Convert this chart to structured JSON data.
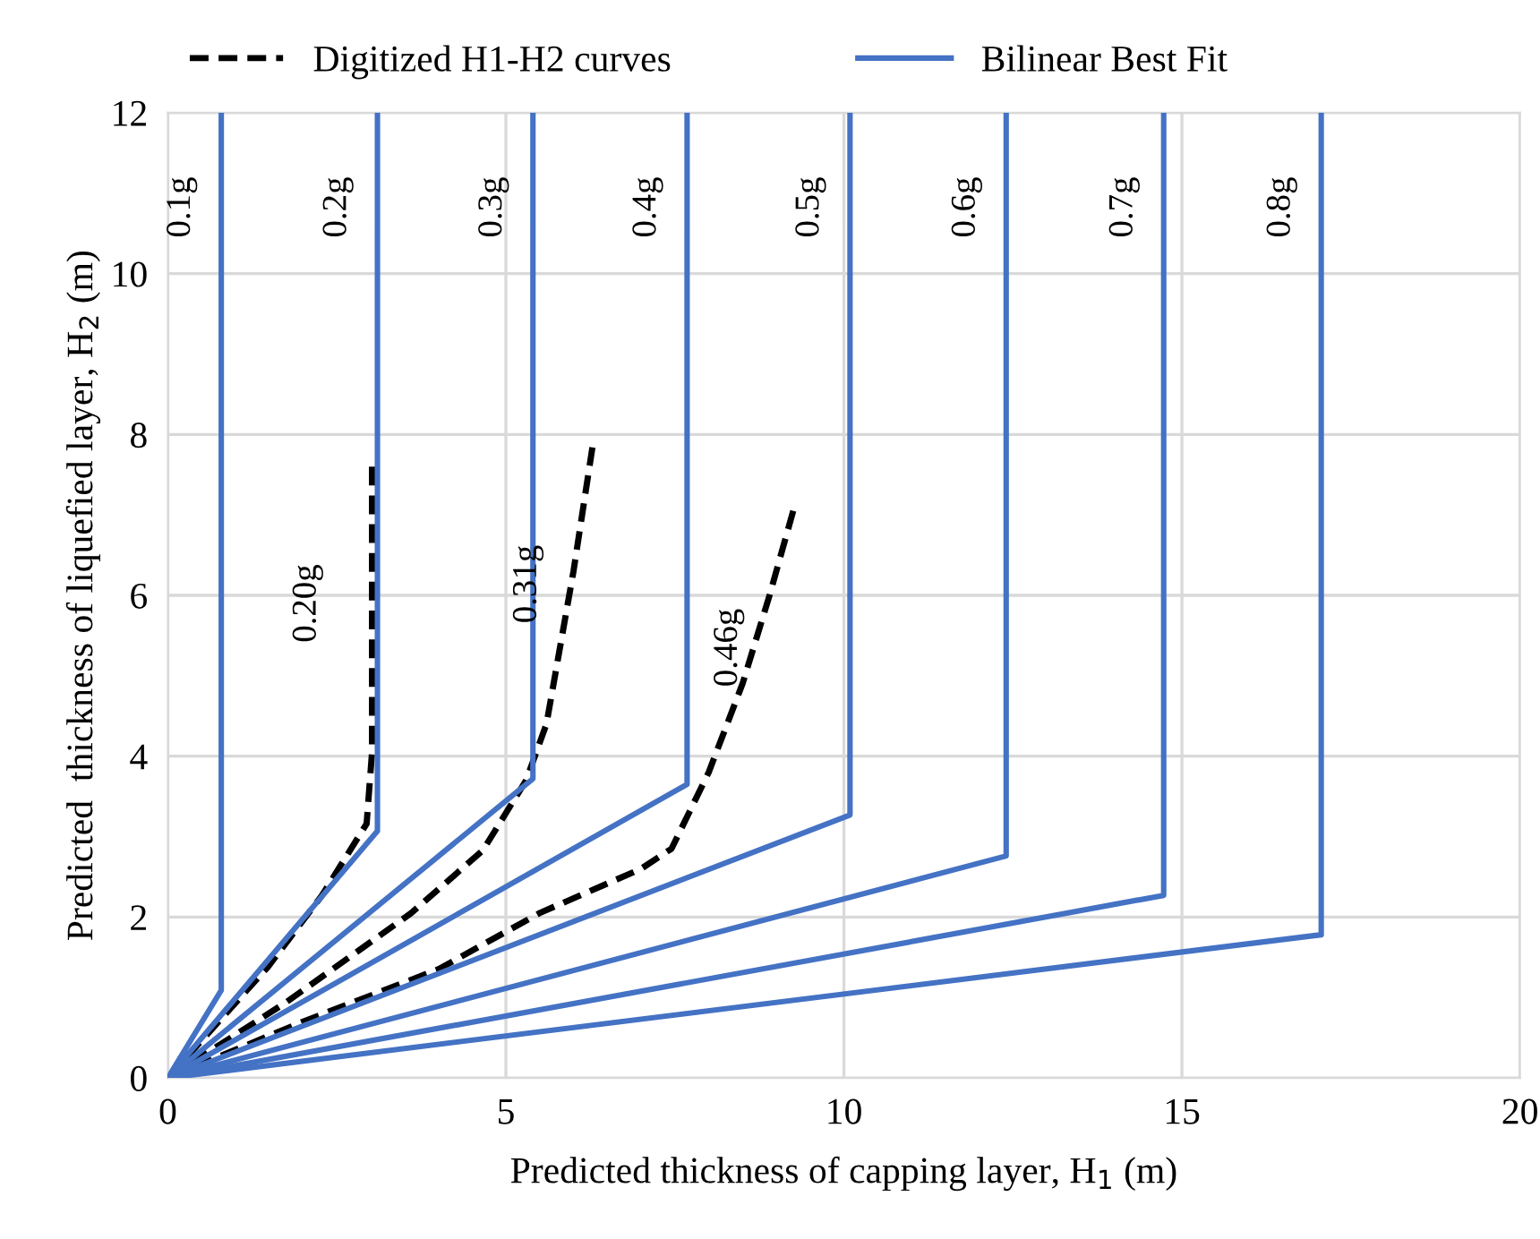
{
  "chart_data": {
    "type": "line",
    "xlabel": "Predicted thickness of capping layer, H$_{1}$ (m)",
    "ylabel": "Predicted  thickness of liquefied layer, H$_{2}$ (m)",
    "xlim": [
      0,
      20
    ],
    "ylim": [
      0,
      12
    ],
    "xticks": [
      0,
      5,
      10,
      15,
      20
    ],
    "yticks": [
      0,
      2,
      4,
      6,
      8,
      10,
      12
    ],
    "grid": true,
    "legend": "top",
    "marker": "none",
    "series": [
      {
        "name": "Digitized H1-H2 curves",
        "color": "#000000",
        "line_style": "dashed",
        "x": [
          0,
          1.48,
          2.28,
          2.94,
          3.02,
          3.02
        ],
        "values": [
          0,
          1.38,
          2.27,
          3.16,
          4.05,
          7.6
        ]
      },
      {
        "color": "#000000",
        "line_style": "dashed",
        "x": [
          0,
          1.75,
          3.6,
          4.66,
          5.3,
          5.6,
          6.0,
          6.28
        ],
        "values": [
          0,
          0.94,
          2.05,
          2.83,
          3.7,
          4.4,
          6.3,
          7.84
        ]
      },
      {
        "color": "#000000",
        "line_style": "dashed",
        "x": [
          0,
          2,
          4,
          5.5,
          7,
          7.45,
          8.0,
          8.5,
          8.9,
          9.25
        ],
        "values": [
          0,
          0.7,
          1.35,
          2.05,
          2.6,
          2.85,
          3.8,
          4.9,
          6.0,
          7.05
        ]
      },
      {
        "name": "Bilinear Best Fit",
        "color": "#4472c4",
        "line_style": "solid",
        "x": [
          0,
          0.79,
          0.79
        ],
        "values": [
          0,
          1.09,
          12
        ]
      },
      {
        "color": "#4472c4",
        "line_style": "solid",
        "x": [
          0,
          3.1,
          3.1
        ],
        "values": [
          0,
          3.07,
          12
        ]
      },
      {
        "color": "#4472c4",
        "line_style": "solid",
        "x": [
          0,
          5.4,
          5.4
        ],
        "values": [
          0,
          3.72,
          12
        ]
      },
      {
        "color": "#4472c4",
        "line_style": "solid",
        "x": [
          0,
          7.68,
          7.68
        ],
        "values": [
          0,
          3.65,
          12
        ]
      },
      {
        "color": "#4472c4",
        "line_style": "solid",
        "x": [
          0,
          10.09,
          10.09
        ],
        "values": [
          0,
          3.27,
          12
        ]
      },
      {
        "color": "#4472c4",
        "line_style": "solid",
        "x": [
          0,
          12.4,
          12.4
        ],
        "values": [
          0,
          2.76,
          12
        ]
      },
      {
        "color": "#4472c4",
        "line_style": "solid",
        "x": [
          0,
          14.73,
          14.73
        ],
        "values": [
          0,
          2.27,
          12
        ]
      },
      {
        "color": "#4472c4",
        "line_style": "solid",
        "x": [
          0,
          17.06,
          17.06
        ],
        "values": [
          0,
          1.78,
          12
        ]
      }
    ],
    "annotations": [
      "0.1g",
      "0.2g",
      "0.3g",
      "0.4g",
      "0.5g",
      "0.6g",
      "0.7g",
      "0.8g",
      "0.20g",
      "0.31g",
      "0.46g"
    ]
  }
}
